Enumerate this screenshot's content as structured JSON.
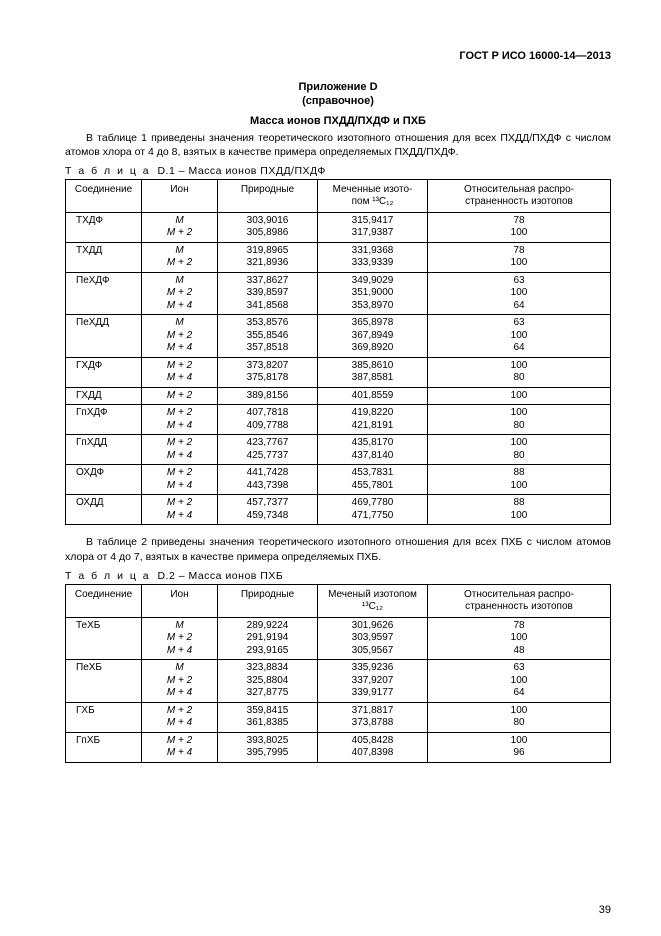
{
  "doc_code": "ГОСТ Р ИСО 16000-14—2013",
  "annex": {
    "title": "Приложение D",
    "sub": "(справочное)"
  },
  "section_title": "Масса ионов ПХДД/ПХДФ и ПХБ",
  "para1": "В таблице 1 приведены значения теоретического изотопного отношения для всех ПХДД/ПХДФ с числом атомов хлора от 4 до 8, взятых в качестве примера определяемых ПХДД/ПХДФ.",
  "para2": "В таблице 2 приведены значения теоретического изотопного отношения для всех ПХБ с числом атомов хлора от 4 до 7, взятых в качестве примера определяемых ПХБ.",
  "tableD1": {
    "caption_prefix": "Т а б л и ц а",
    "caption": "D.1 – Масса ионов ПХДД/ПХДФ",
    "headers": [
      "Соединение",
      "Ион",
      "Природные",
      "Меченные изото-\nпом ¹³C₁₂",
      "Относительная распро-\nстраненность изотопов"
    ],
    "rows": [
      {
        "comp": "ТХДФ",
        "ions": [
          "M",
          "M + 2"
        ],
        "nat": [
          "303,9016",
          "305,8986"
        ],
        "iso": [
          "315,9417",
          "317,9387"
        ],
        "rel": [
          "78",
          "100"
        ]
      },
      {
        "comp": "ТХДД",
        "ions": [
          "M",
          "M + 2"
        ],
        "nat": [
          "319,8965",
          "321,8936"
        ],
        "iso": [
          "331,9368",
          "333,9339"
        ],
        "rel": [
          "78",
          "100"
        ]
      },
      {
        "comp": "ПеХДФ",
        "ions": [
          "M",
          "M + 2",
          "M + 4"
        ],
        "nat": [
          "337,8627",
          "339,8597",
          "341,8568"
        ],
        "iso": [
          "349,9029",
          "351,9000",
          "353,8970"
        ],
        "rel": [
          "63",
          "100",
          "64"
        ]
      },
      {
        "comp": "ПеХДД",
        "ions": [
          "M",
          "M + 2",
          "M + 4"
        ],
        "nat": [
          "353,8576",
          "355,8546",
          "357,8518"
        ],
        "iso": [
          "365,8978",
          "367,8949",
          "369,8920"
        ],
        "rel": [
          "63",
          "100",
          "64"
        ]
      },
      {
        "comp": "ГХДФ",
        "ions": [
          "M + 2",
          "M + 4"
        ],
        "nat": [
          "373,8207",
          "375,8178"
        ],
        "iso": [
          "385,8610",
          "387,8581"
        ],
        "rel": [
          "100",
          "80"
        ]
      },
      {
        "comp": "ГХДД",
        "ions": [
          "M + 2"
        ],
        "nat": [
          "389,8156"
        ],
        "iso": [
          "401,8559"
        ],
        "rel": [
          "100"
        ]
      },
      {
        "comp": "ГпХДФ",
        "ions": [
          "M + 2",
          "M + 4"
        ],
        "nat": [
          "407,7818",
          "409,7788"
        ],
        "iso": [
          "419,8220",
          "421,8191"
        ],
        "rel": [
          "100",
          "80"
        ]
      },
      {
        "comp": "ГпХДД",
        "ions": [
          "M + 2",
          "M + 4"
        ],
        "nat": [
          "423,7767",
          "425,7737"
        ],
        "iso": [
          "435,8170",
          "437,8140"
        ],
        "rel": [
          "100",
          "80"
        ]
      },
      {
        "comp": "ОХДФ",
        "ions": [
          "M + 2",
          "M + 4"
        ],
        "nat": [
          "441,7428",
          "443,7398"
        ],
        "iso": [
          "453,7831",
          "455,7801"
        ],
        "rel": [
          "88",
          "100"
        ]
      },
      {
        "comp": "ОХДД",
        "ions": [
          "M + 2",
          "M + 4"
        ],
        "nat": [
          "457,7377",
          "459,7348"
        ],
        "iso": [
          "469,7780",
          "471,7750"
        ],
        "rel": [
          "88",
          "100"
        ]
      }
    ]
  },
  "tableD2": {
    "caption_prefix": "Т а б л и ц а",
    "caption": "D.2 – Масса ионов ПХБ",
    "headers": [
      "Соединение",
      "Ион",
      "Природные",
      "Меченый изотопом\n¹³C₁₂",
      "Относительная распро-\nстраненность изотопов"
    ],
    "rows": [
      {
        "comp": "ТеХБ",
        "ions": [
          "M",
          "M + 2",
          "M + 4"
        ],
        "nat": [
          "289,9224",
          "291,9194",
          "293,9165"
        ],
        "iso": [
          "301,9626",
          "303,9597",
          "305,9567"
        ],
        "rel": [
          "78",
          "100",
          "48"
        ]
      },
      {
        "comp": "ПеХБ",
        "ions": [
          "M",
          "M + 2",
          "M + 4"
        ],
        "nat": [
          "323,8834",
          "325,8804",
          "327,8775"
        ],
        "iso": [
          "335,9236",
          "337,9207",
          "339,9177"
        ],
        "rel": [
          "63",
          "100",
          "64"
        ]
      },
      {
        "comp": "ГХБ",
        "ions": [
          "M + 2",
          "M + 4"
        ],
        "nat": [
          "359,8415",
          "361,8385"
        ],
        "iso": [
          "371,8817",
          "373,8788"
        ],
        "rel": [
          "100",
          "80"
        ]
      },
      {
        "comp": "ГпХБ",
        "ions": [
          "M + 2",
          "M + 4"
        ],
        "nat": [
          "393,8025",
          "395,7995"
        ],
        "iso": [
          "405,8428",
          "407,8398"
        ],
        "rel": [
          "100",
          "96"
        ]
      }
    ]
  },
  "page_number": "39"
}
